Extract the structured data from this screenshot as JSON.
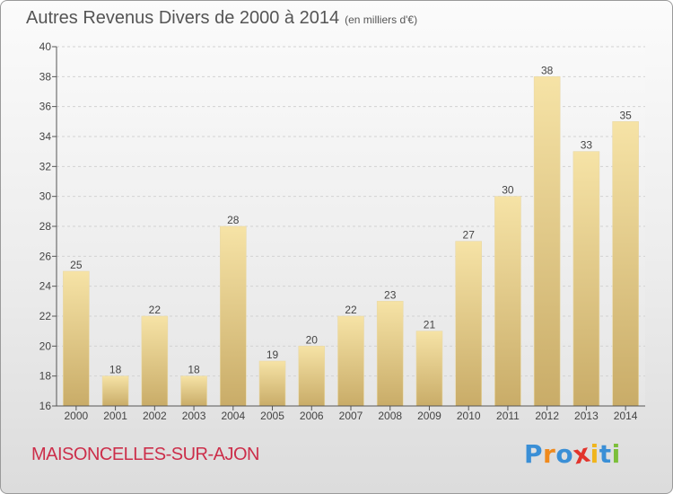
{
  "title": "Autres Revenus Divers de 2000 à 2014",
  "unit_note": "(en milliers d'€)",
  "commune": "MAISONCELLES-SUR-AJON",
  "logo": {
    "letters": [
      "P",
      "r",
      "o",
      "x",
      "i",
      "t",
      "i"
    ],
    "colors": [
      "#3a8fd6",
      "#f08a1c",
      "#3a8fd6",
      "#e2342c",
      "#f0b51c",
      "#3a8fd6",
      "#7cbf3a"
    ]
  },
  "chart_data": {
    "type": "bar",
    "categories": [
      "2000",
      "2001",
      "2002",
      "2003",
      "2004",
      "2005",
      "2006",
      "2007",
      "2008",
      "2009",
      "2010",
      "2011",
      "2012",
      "2013",
      "2014"
    ],
    "values": [
      25,
      18,
      22,
      18,
      28,
      19,
      20,
      22,
      23,
      21,
      27,
      30,
      38,
      33,
      35
    ],
    "ylim": [
      16,
      40
    ],
    "yticks": [
      16,
      18,
      20,
      22,
      24,
      26,
      28,
      30,
      32,
      34,
      36,
      38,
      40
    ],
    "xlabel": "",
    "ylabel": "",
    "grid": true,
    "bar_color": "#e8cf8c"
  }
}
